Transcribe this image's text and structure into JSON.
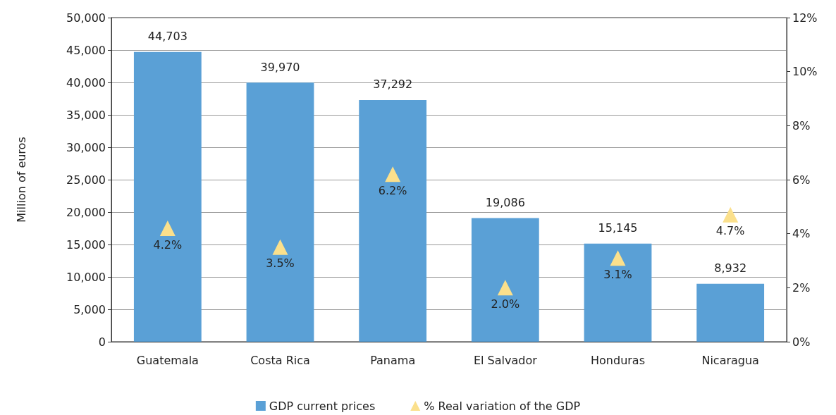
{
  "chart_data": {
    "type": "bar",
    "ylabel": "Million of euros",
    "categories": [
      "Guatemala",
      "Costa Rica",
      "Panama",
      "El Salvador",
      "Honduras",
      "Nicaragua"
    ],
    "series": [
      {
        "name": "GDP current prices",
        "type": "bar",
        "color": "#5aa0d6",
        "values": [
          44703,
          39970,
          37292,
          19086,
          15145,
          8932
        ],
        "value_labels": [
          "44,703",
          "39,970",
          "37,292",
          "19,086",
          "15,145",
          "8,932"
        ]
      },
      {
        "name": "% Real variation of the GDP",
        "type": "scatter",
        "axis": "y2",
        "marker": "triangle",
        "color": "#fbe08c",
        "values": [
          4.2,
          3.5,
          6.2,
          2.0,
          3.1,
          4.7
        ],
        "value_labels": [
          "4.2%",
          "3.5%",
          "6.2%",
          "2.0%",
          "3.1%",
          "4.7%"
        ]
      }
    ],
    "ylim": [
      0,
      50000
    ],
    "yticks": [
      {
        "value": 0,
        "label": "0"
      },
      {
        "value": 5000,
        "label": "5,000"
      },
      {
        "value": 10000,
        "label": "10,000"
      },
      {
        "value": 15000,
        "label": "15,000"
      },
      {
        "value": 20000,
        "label": "20,000"
      },
      {
        "value": 25000,
        "label": "25,000"
      },
      {
        "value": 30000,
        "label": "30,000"
      },
      {
        "value": 35000,
        "label": "35,000"
      },
      {
        "value": 40000,
        "label": "40,000"
      },
      {
        "value": 45000,
        "label": "45,000"
      },
      {
        "value": 50000,
        "label": "50,000"
      }
    ],
    "y2lim": [
      0,
      12
    ],
    "y2ticks": [
      {
        "value": 0,
        "label": "0%"
      },
      {
        "value": 2,
        "label": "2%"
      },
      {
        "value": 4,
        "label": "4%"
      },
      {
        "value": 6,
        "label": "6%"
      },
      {
        "value": 8,
        "label": "8%"
      },
      {
        "value": 10,
        "label": "10%"
      },
      {
        "value": 12,
        "label": "12%"
      }
    ],
    "grid": "y",
    "legend": "bottom"
  }
}
